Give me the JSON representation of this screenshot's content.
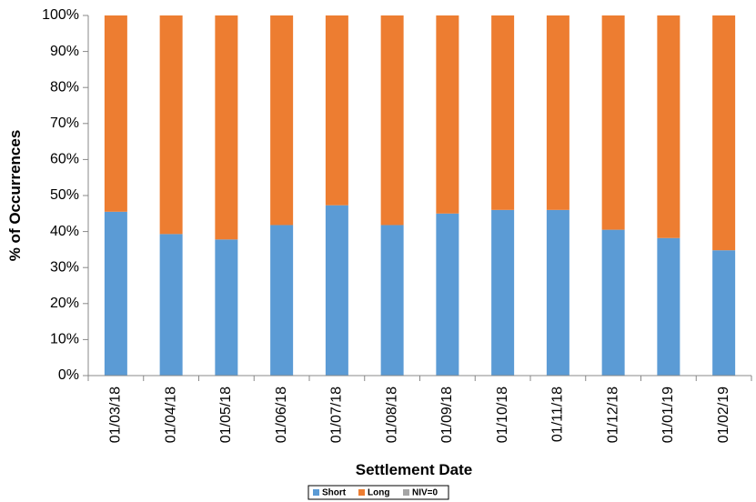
{
  "chart_data": {
    "type": "stacked_bar",
    "x_label": "Settlement Date",
    "y_label": "% of Occurrences",
    "categories": [
      "01/03/18",
      "01/04/18",
      "01/05/18",
      "01/06/18",
      "01/07/18",
      "01/08/18",
      "01/09/18",
      "01/10/18",
      "01/11/18",
      "01/12/18",
      "01/01/19",
      "01/02/19"
    ],
    "series": [
      {
        "name": "Short",
        "color": "#5b9bd5",
        "values": [
          45.5,
          39.3,
          37.8,
          41.8,
          47.3,
          41.8,
          45,
          46,
          46,
          40.5,
          38.2,
          34.8
        ]
      },
      {
        "name": "Long",
        "color": "#ed7d31",
        "values": [
          54.5,
          60.7,
          62.2,
          58.2,
          52.7,
          58.2,
          55,
          54,
          54,
          59.5,
          61.8,
          65.2
        ]
      },
      {
        "name": "NIV=0",
        "color": "#a5a5a5",
        "values": [
          0,
          0,
          0,
          0,
          0,
          0,
          0,
          0,
          0,
          0,
          0,
          0
        ]
      }
    ],
    "ylim": [
      0,
      100
    ],
    "yticks": [
      {
        "value": 0,
        "label": "0%"
      },
      {
        "value": 10,
        "label": "10%"
      },
      {
        "value": 20,
        "label": "20%"
      },
      {
        "value": 30,
        "label": "30%"
      },
      {
        "value": 40,
        "label": "40%"
      },
      {
        "value": 50,
        "label": "50%"
      },
      {
        "value": 60,
        "label": "60%"
      },
      {
        "value": 70,
        "label": "70%"
      },
      {
        "value": 80,
        "label": "80%"
      },
      {
        "value": 90,
        "label": "90%"
      },
      {
        "value": 100,
        "label": "100%"
      }
    ],
    "legend": "bottom"
  }
}
